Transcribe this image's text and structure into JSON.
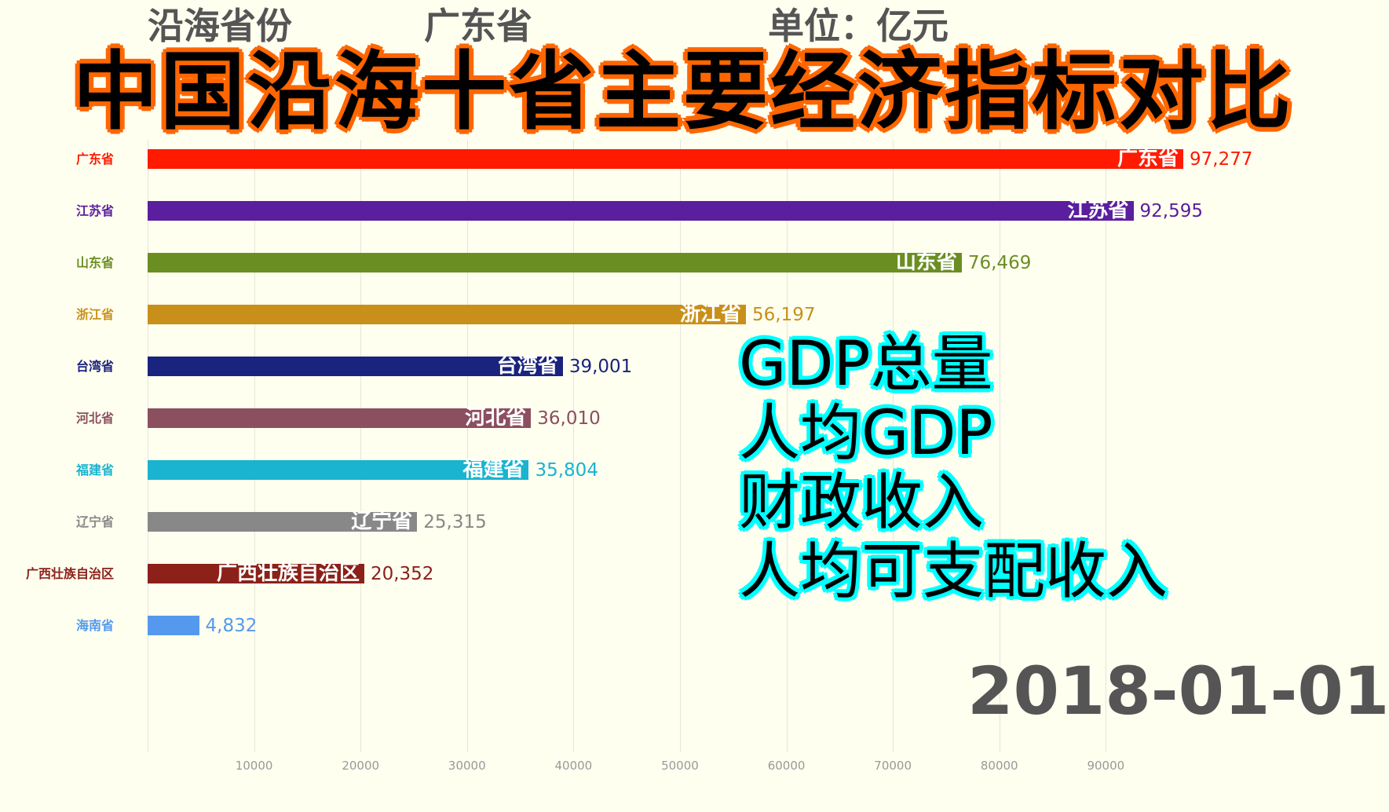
{
  "header": {
    "category": "沿海省份",
    "current": "广东省",
    "unit": "单位：亿元"
  },
  "overlay": {
    "title": "中国沿海十省主要经济指标对比",
    "metrics": [
      "GDP总量",
      "人均GDP",
      "财政收入",
      "人均可支配收入"
    ]
  },
  "chart_data": {
    "type": "bar",
    "orientation": "horizontal",
    "date": "2018-01-01",
    "categories": [
      "广东省",
      "江苏省",
      "山东省",
      "浙江省",
      "台湾省",
      "河北省",
      "福建省",
      "辽宁省",
      "广西壮族自治区",
      "海南省"
    ],
    "values": [
      97277,
      92595,
      76469,
      56197,
      39001,
      36010,
      35804,
      25315,
      20352,
      4832
    ],
    "value_labels": [
      "97,277",
      "92,595",
      "76,469",
      "56,197",
      "39,001",
      "36,010",
      "35,804",
      "25,315",
      "20,352",
      "4,832"
    ],
    "colors": [
      "#ff1a00",
      "#5a1e9e",
      "#6b8e23",
      "#c8901a",
      "#1a237e",
      "#8b4f5f",
      "#1ab3d0",
      "#888888",
      "#8b2118",
      "#5599ee"
    ],
    "xticks": [
      "10000",
      "20000",
      "30000",
      "40000",
      "50000",
      "60000",
      "70000",
      "80000",
      "90000"
    ],
    "xlim": [
      0,
      97277
    ],
    "grid": true
  }
}
